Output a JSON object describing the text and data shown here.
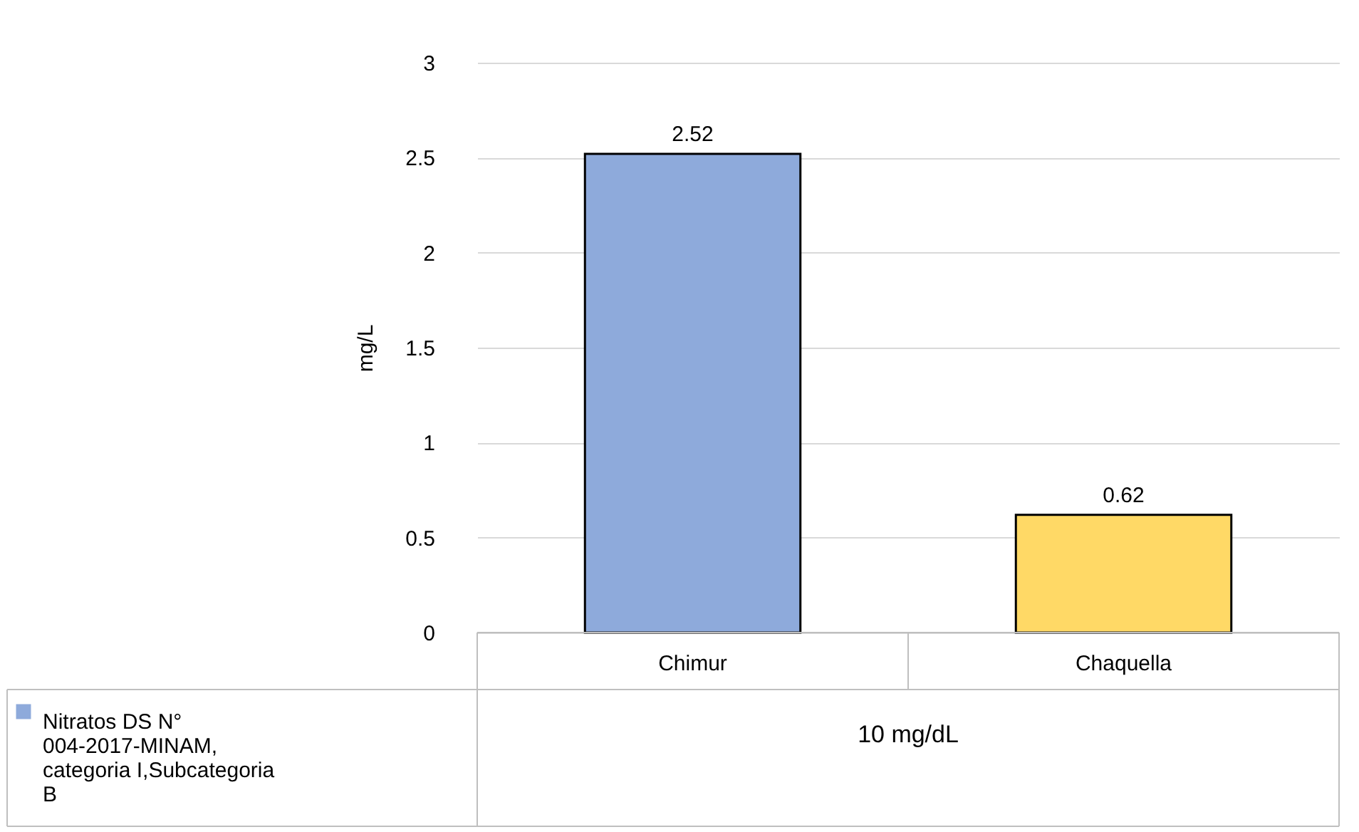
{
  "chart_data": {
    "type": "bar",
    "ylabel": "mg/L",
    "categories": [
      "Chimur",
      "Chaquella"
    ],
    "series": [
      {
        "name": "Nitratos DS N° 004-2017-MINAM, categoria I,Subcategoria B",
        "color": "#8eaadb",
        "colors": [
          "#8eaadb",
          "#ffd966"
        ],
        "values": [
          2.52,
          0.62
        ]
      }
    ],
    "ylim": [
      0,
      3
    ],
    "yticks": [
      0,
      0.5,
      1,
      1.5,
      2,
      2.5,
      3
    ],
    "grid": "y",
    "data_labels": true,
    "legend": "bottom",
    "annotations": [
      "10 mg/dL"
    ]
  }
}
